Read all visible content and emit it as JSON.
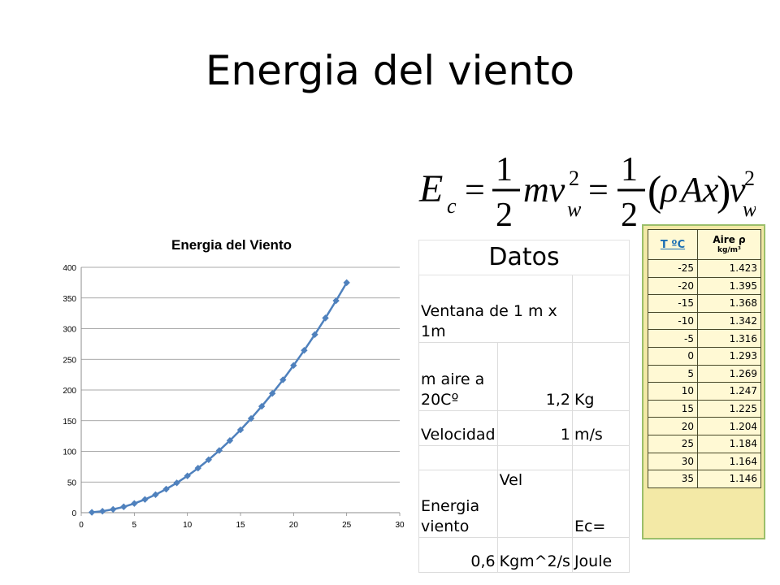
{
  "slide": {
    "title": "Energia del viento"
  },
  "formula": {
    "lhs": "E",
    "lhs_sub": "c",
    "eq": "=",
    "half_num": "1",
    "half_den": "2",
    "mv": "mv",
    "v_sup": "2",
    "v_sub": "w",
    "rho_expr": "(ρAx)v",
    "rho_open": "(",
    "rho": "ρ",
    "ax": "Ax",
    "rho_close": ")",
    "v": "v"
  },
  "chart_data": {
    "type": "line",
    "title": "Energia del Viento",
    "xlabel": "",
    "ylabel": "",
    "xlim": [
      0,
      30
    ],
    "ylim": [
      0,
      400
    ],
    "x_ticks": [
      0,
      5,
      10,
      15,
      20,
      25,
      30
    ],
    "y_ticks": [
      0,
      50,
      100,
      150,
      200,
      250,
      300,
      350,
      400
    ],
    "grid": true,
    "series": [
      {
        "color": "#4f81bd",
        "x": [
          1,
          2,
          3,
          4,
          5,
          6,
          7,
          8,
          9,
          10,
          11,
          12,
          13,
          14,
          15,
          16,
          17,
          18,
          19,
          20,
          21,
          22,
          23,
          24,
          25
        ],
        "y": [
          0.6,
          2.4,
          5.4,
          9.6,
          15,
          21.6,
          29.4,
          38.4,
          48.6,
          60,
          72.6,
          86.4,
          101.4,
          117.6,
          135,
          153.6,
          173.4,
          194.4,
          216.6,
          240,
          264.6,
          290.4,
          317.4,
          345.6,
          375
        ]
      }
    ]
  },
  "datos": {
    "header": "Datos",
    "rows": [
      [
        "Ventana de 1 m x 1m",
        "",
        ""
      ],
      [
        "m aire a 20Cº",
        "1,2",
        "Kg"
      ],
      [
        "Velocidad",
        "1",
        "m/s"
      ],
      [
        "",
        "",
        ""
      ],
      [
        "Energia viento",
        "Vel",
        "Ec="
      ],
      [
        "0,6",
        "Kgm^2/s",
        "Joule"
      ]
    ]
  },
  "density": {
    "header_t": "T  ºC",
    "header_air": "Aire  ρ",
    "header_unit": "kg/m³",
    "rows": [
      [
        "-25",
        "1.423"
      ],
      [
        "-20",
        "1.395"
      ],
      [
        "-15",
        "1.368"
      ],
      [
        "-10",
        "1.342"
      ],
      [
        "-5",
        "1.316"
      ],
      [
        "0",
        "1.293"
      ],
      [
        "5",
        "1.269"
      ],
      [
        "10",
        "1.247"
      ],
      [
        "15",
        "1.225"
      ],
      [
        "20",
        "1.204"
      ],
      [
        "25",
        "1.184"
      ],
      [
        "30",
        "1.164"
      ],
      [
        "35",
        "1.146"
      ]
    ],
    "colors": {
      "border": "#9bbf6a",
      "background": "#f3e9a6",
      "cell": "#fff9d4",
      "header_link": "#1b6fb3"
    }
  }
}
